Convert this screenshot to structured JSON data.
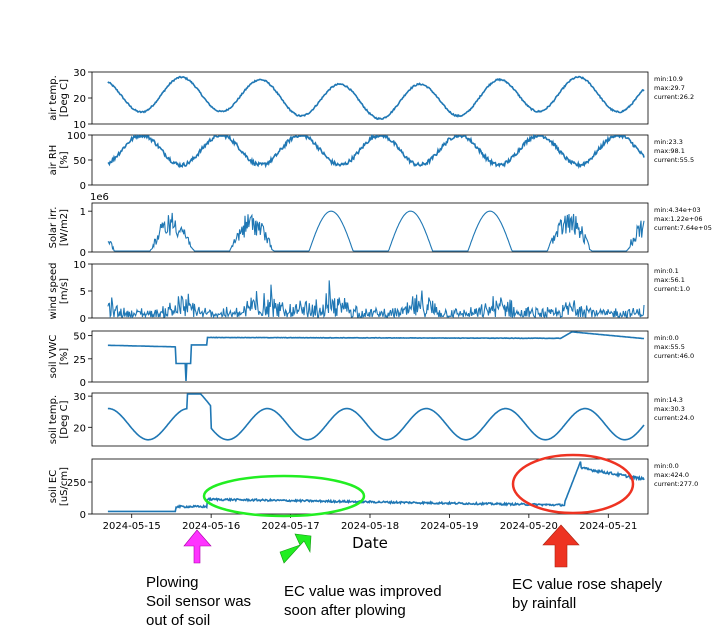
{
  "chart_data": {
    "type": "line",
    "xlabel": "Date",
    "x_ticks": [
      "2024-05-15",
      "2024-05-16",
      "2024-05-17",
      "2024-05-18",
      "2024-05-19",
      "2024-05-20",
      "2024-05-21"
    ],
    "x_range": [
      "2024-05-14T12:00",
      "2024-05-21T12:00"
    ],
    "line_color": "#1f77b4",
    "panels": [
      {
        "ylabel": [
          "air temp.",
          "[Deg C]"
        ],
        "ylim": [
          10,
          30
        ],
        "yticks": [
          "10",
          "20",
          "30"
        ],
        "sci_label": "",
        "stats": [
          "min:10.9",
          "max:29.7",
          "current:26.2"
        ]
      },
      {
        "ylabel": [
          "air RH",
          "[%]"
        ],
        "ylim": [
          0,
          100
        ],
        "yticks": [
          "0",
          "50",
          "100"
        ],
        "sci_label": "",
        "stats": [
          "min:23.3",
          "max:98.1",
          "current:55.5"
        ]
      },
      {
        "ylabel": [
          "Solar irr.",
          "[W/m2]"
        ],
        "ylim": [
          0,
          1.2
        ],
        "yticks": [
          "0",
          "1"
        ],
        "sci_label": "1e6",
        "stats": [
          "min:4.34e+03",
          "max:1.22e+06",
          "current:7.64e+05"
        ]
      },
      {
        "ylabel": [
          "wind speed",
          "[m/s]"
        ],
        "ylim": [
          0,
          10
        ],
        "yticks": [
          "0",
          "5",
          "10"
        ],
        "sci_label": "",
        "stats": [
          "min:0.1",
          "max:56.1",
          "current:1.0"
        ]
      },
      {
        "ylabel": [
          "soil VWC",
          "[%]"
        ],
        "ylim": [
          0,
          55
        ],
        "yticks": [
          "0",
          "25",
          "50"
        ],
        "sci_label": "",
        "stats": [
          "min:0.0",
          "max:55.5",
          "current:46.0"
        ]
      },
      {
        "ylabel": [
          "soil temp.",
          "[Deg C]"
        ],
        "ylim": [
          14,
          31
        ],
        "yticks": [
          "20",
          "30"
        ],
        "sci_label": "",
        "stats": [
          "min:14.3",
          "max:30.3",
          "current:24.0"
        ]
      },
      {
        "ylabel": [
          "soil EC",
          "[uS/cm]"
        ],
        "ylim": [
          0,
          430
        ],
        "yticks": [
          "0",
          "250"
        ],
        "sci_label": "",
        "stats": [
          "min:0.0",
          "max:424.0",
          "current:277.0"
        ]
      }
    ]
  },
  "annotations": {
    "plowing": [
      "Plowing",
      "Soil sensor was",
      "out of soil"
    ],
    "improved": [
      "EC value was improved",
      "soon after plowing"
    ],
    "rainfall": [
      "EC value rose shapely",
      "by rainfall"
    ],
    "colors": {
      "magenta": "#ff33ff",
      "green": "#22ee22",
      "red": "#ee3322"
    }
  }
}
